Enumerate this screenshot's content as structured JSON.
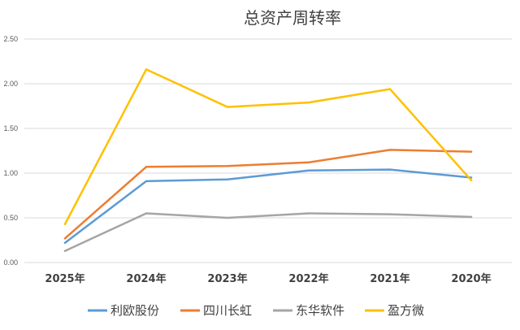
{
  "chart_data": {
    "type": "line",
    "title": "总资产周转率",
    "categories": [
      "2025年",
      "2024年",
      "2023年",
      "2022年",
      "2021年",
      "2020年"
    ],
    "ylim": [
      0,
      2.5
    ],
    "yticks": [
      "0.00",
      "0.50",
      "1.00",
      "1.50",
      "2.00",
      "2.50"
    ],
    "grid": true,
    "legend_position": "bottom",
    "xlabel": "",
    "ylabel": "",
    "series": [
      {
        "name": "利欧股份",
        "color": "#5b9bd5",
        "values": [
          0.22,
          0.91,
          0.93,
          1.03,
          1.04,
          0.95
        ]
      },
      {
        "name": "四川长虹",
        "color": "#ed7d31",
        "values": [
          0.27,
          1.07,
          1.08,
          1.12,
          1.26,
          1.24
        ]
      },
      {
        "name": "东华软件",
        "color": "#a5a5a5",
        "values": [
          0.13,
          0.55,
          0.5,
          0.55,
          0.54,
          0.51
        ]
      },
      {
        "name": "盈方微",
        "color": "#ffc000",
        "values": [
          0.43,
          2.16,
          1.74,
          1.79,
          1.94,
          0.92
        ]
      }
    ]
  }
}
